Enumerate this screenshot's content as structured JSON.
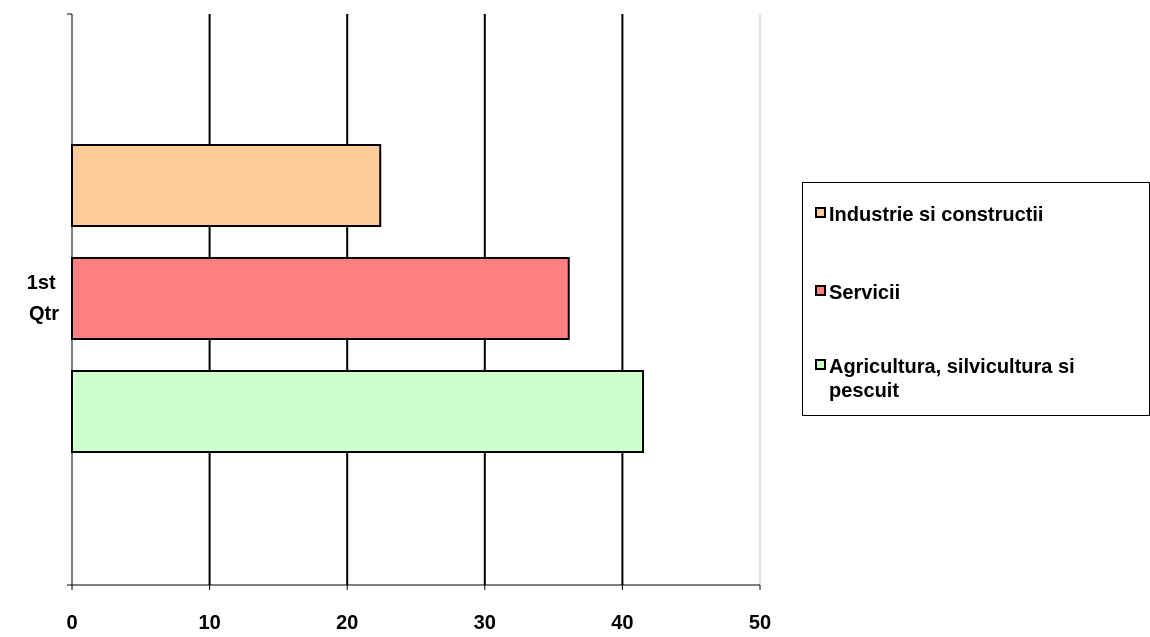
{
  "chart_data": {
    "type": "bar",
    "orientation": "horizontal",
    "categories": [
      "1st Qtr"
    ],
    "series": [
      {
        "name": "Industrie si constructii",
        "values": [
          22.4
        ],
        "color": "#FFCC99"
      },
      {
        "name": "Servicii",
        "values": [
          36.1
        ],
        "color": "#FF8080"
      },
      {
        "name": "Agricultura, silvicultura si pescuit",
        "values": [
          41.5
        ],
        "color": "#CCFFCC"
      }
    ],
    "xlim": [
      0,
      50
    ],
    "xticks": [
      "0",
      "10",
      "20",
      "30",
      "40",
      "50"
    ],
    "title": "",
    "xlabel": "",
    "ylabel": "",
    "grid": "vertical major gridlines",
    "legend_position": "right"
  },
  "category_label": {
    "line1": "1st",
    "line2": "Qtr"
  },
  "legend": {
    "items": [
      {
        "line1": "Industrie si constructii",
        "line2": ""
      },
      {
        "line1": "Servicii",
        "line2": ""
      },
      {
        "line1": "Agricultura, silvicultura si",
        "line2": "pescuit"
      }
    ]
  }
}
